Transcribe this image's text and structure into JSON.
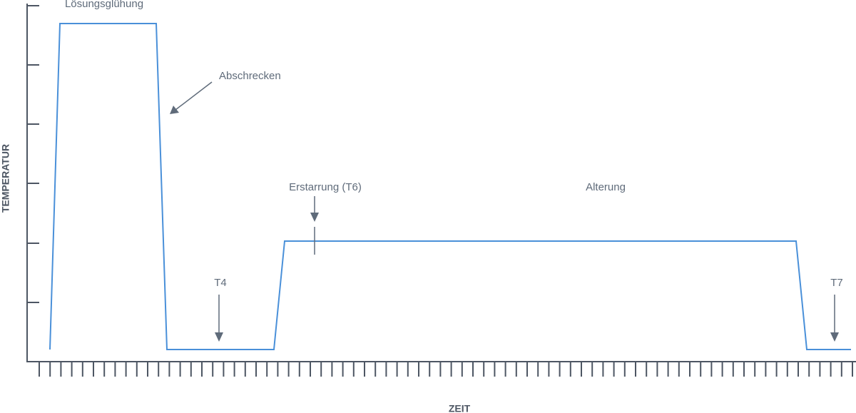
{
  "axes": {
    "y_label": "TEMPERATUR",
    "x_label": "ZEIT"
  },
  "annotations": {
    "solution": "Lösungsglühung",
    "quench": "Abschrecken",
    "t4": "T4",
    "t6": "Erstarrung (T6)",
    "aging": "Alterung",
    "t7": "T7"
  }
}
